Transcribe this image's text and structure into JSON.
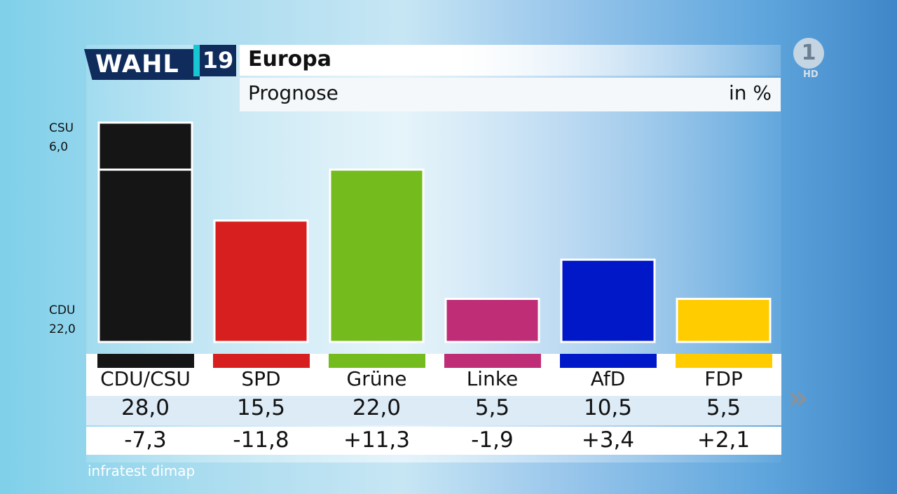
{
  "header": {
    "logo_text": "WAHL",
    "year": "19",
    "title": "Europa",
    "subtitle": "Prognose",
    "unit": "in %"
  },
  "broadcaster": {
    "logo": "1",
    "quality": "HD"
  },
  "source": "infratest dimap",
  "next_icon": "»",
  "colors": {
    "CDU/CSU": "#151515",
    "SPD": "#d81f1f",
    "Grüne": "#74bb1d",
    "Linke": "#be2d76",
    "AfD": "#0018c8",
    "FDP": "#ffcc00"
  },
  "chart_data": {
    "type": "bar",
    "categories": [
      "CDU/CSU",
      "SPD",
      "Grüne",
      "Linke",
      "AfD",
      "FDP"
    ],
    "values": [
      28.0,
      15.5,
      22.0,
      5.5,
      10.5,
      5.5
    ],
    "stacked_components": {
      "CDU/CSU": [
        {
          "name": "CDU",
          "value": 22.0
        },
        {
          "name": "CSU",
          "value": 6.0
        }
      ]
    },
    "labels": [
      "28,0",
      "15,5",
      "22,0",
      "5,5",
      "10,5",
      "5,5"
    ],
    "changes": [
      "-7,3",
      "-11,8",
      "+11,3",
      "-1,9",
      "+3,4",
      "+2,1"
    ],
    "side_labels": {
      "csu": {
        "name": "CSU",
        "value": "6,0"
      },
      "cdu": {
        "name": "CDU",
        "value": "22,0"
      }
    },
    "ylim": [
      0,
      28
    ]
  }
}
